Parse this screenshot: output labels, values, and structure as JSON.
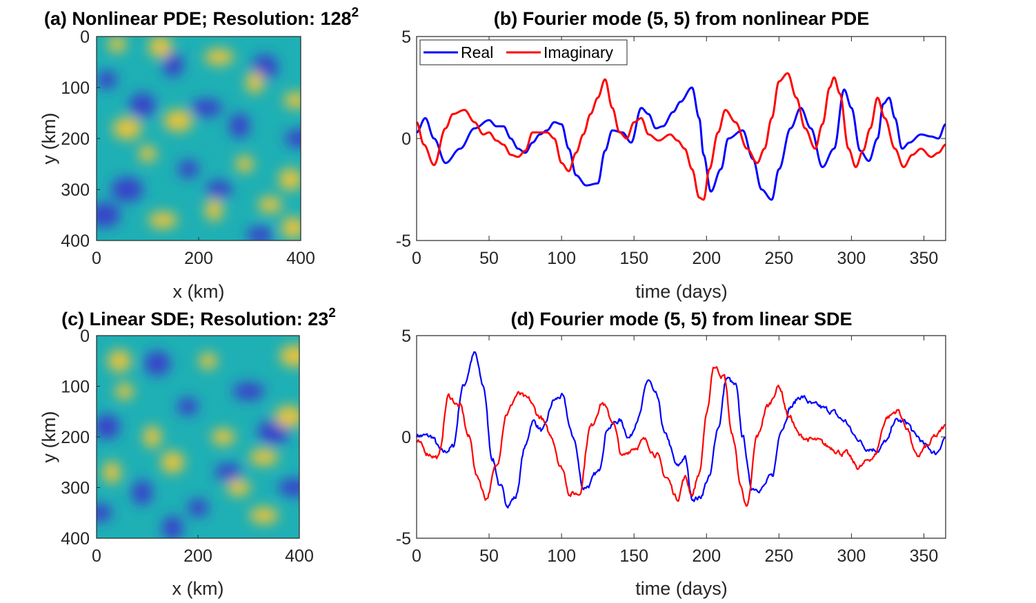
{
  "colors": {
    "real": "#0000ff",
    "imaginary": "#ff0000",
    "axis": "#262626",
    "field_low": "#3d2fcc",
    "field_mid": "#1eb0b5",
    "field_high": "#f5c431"
  },
  "chart_data": [
    {
      "id": "a",
      "type": "heatmap",
      "title_main": "(a) Nonlinear PDE; Resolution: 128",
      "title_sup": "2",
      "xlabel": "x (km)",
      "ylabel": "y (km)",
      "xlim": [
        0,
        400
      ],
      "ylim": [
        0,
        400
      ],
      "y_direction": "reversed",
      "xticks": [
        "0",
        "200",
        "400"
      ],
      "yticks": [
        "0",
        "100",
        "200",
        "300",
        "400"
      ],
      "colormap": "parula",
      "hot_spots": [
        [
          40,
          15
        ],
        [
          125,
          20
        ],
        [
          240,
          40
        ],
        [
          310,
          90
        ],
        [
          390,
          125
        ],
        [
          160,
          165
        ],
        [
          100,
          230
        ],
        [
          380,
          280
        ],
        [
          130,
          360
        ],
        [
          230,
          340
        ],
        [
          340,
          330
        ],
        [
          60,
          180
        ],
        [
          290,
          250
        ],
        [
          385,
          375
        ]
      ],
      "cold_spots": [
        [
          20,
          85
        ],
        [
          90,
          135
        ],
        [
          215,
          140
        ],
        [
          280,
          175
        ],
        [
          240,
          300
        ],
        [
          60,
          300
        ],
        [
          180,
          260
        ],
        [
          330,
          60
        ],
        [
          400,
          200
        ],
        [
          150,
          55
        ],
        [
          320,
          390
        ],
        [
          15,
          350
        ]
      ]
    },
    {
      "id": "b",
      "type": "line",
      "title": "(b) Fourier mode (5, 5) from nonlinear PDE",
      "xlabel": "time (days)",
      "ylabel": "",
      "xlim": [
        0,
        365
      ],
      "ylim": [
        -5,
        5
      ],
      "xticks": [
        "0",
        "50",
        "100",
        "150",
        "200",
        "250",
        "300",
        "350"
      ],
      "yticks": [
        "5",
        "0",
        "-5"
      ],
      "legend": {
        "position": "top-left",
        "entries": [
          "Real",
          "Imaginary"
        ]
      },
      "series": [
        {
          "name": "Real",
          "color": "#0000ff",
          "x": [
            0,
            6,
            12,
            20,
            30,
            40,
            50,
            55,
            60,
            65,
            70,
            75,
            80,
            85,
            90,
            95,
            100,
            105,
            110,
            117,
            125,
            130,
            135,
            142,
            148,
            155,
            160,
            165,
            170,
            177,
            182,
            190,
            195,
            198,
            203,
            210,
            215,
            225,
            232,
            238,
            245,
            250,
            258,
            265,
            272,
            280,
            288,
            295,
            300,
            306,
            312,
            318,
            322,
            326,
            330,
            335,
            340,
            348,
            355,
            360,
            365
          ],
          "y": [
            0.3,
            1.0,
            0.0,
            -1.2,
            -0.5,
            0.5,
            0.9,
            0.6,
            0.6,
            0.0,
            -0.5,
            -0.7,
            -0.2,
            0.2,
            0.4,
            0.8,
            0.7,
            -0.5,
            -1.8,
            -2.3,
            -2.2,
            -0.6,
            0.4,
            0.3,
            -0.2,
            1.5,
            1.2,
            0.5,
            0.6,
            1.3,
            1.8,
            2.5,
            1.0,
            -0.8,
            -2.6,
            -1.5,
            0.0,
            0.4,
            -1.0,
            -2.5,
            -3.0,
            -1.5,
            0.5,
            1.5,
            0.5,
            -1.4,
            -0.5,
            2.4,
            1.5,
            -0.6,
            -1.1,
            0.0,
            1.7,
            2.0,
            1.0,
            -0.5,
            -0.2,
            0.2,
            0.1,
            0.0,
            0.7
          ]
        },
        {
          "name": "Imaginary",
          "color": "#ff0000",
          "x": [
            0,
            5,
            12,
            20,
            25,
            33,
            40,
            46,
            50,
            55,
            60,
            65,
            70,
            75,
            80,
            85,
            90,
            95,
            100,
            105,
            110,
            115,
            120,
            125,
            130,
            135,
            140,
            145,
            150,
            155,
            160,
            167,
            175,
            180,
            185,
            190,
            195,
            198,
            202,
            208,
            213,
            220,
            228,
            235,
            240,
            245,
            250,
            256,
            262,
            268,
            275,
            280,
            285,
            288,
            292,
            298,
            303,
            308,
            313,
            318,
            323,
            330,
            336,
            342,
            348,
            355,
            360,
            365
          ],
          "y": [
            0.8,
            -0.3,
            -1.3,
            0.5,
            1.2,
            1.4,
            0.8,
            0.2,
            0.3,
            -0.1,
            -0.3,
            -0.8,
            -0.9,
            -0.6,
            0.3,
            0.3,
            0.3,
            0.0,
            -1.2,
            -1.6,
            -0.7,
            0.2,
            1.2,
            2.0,
            2.9,
            1.5,
            0.3,
            0.0,
            0.8,
            1.0,
            0.2,
            -0.1,
            0.2,
            -0.1,
            -0.5,
            -1.5,
            -2.9,
            -3.0,
            -1.5,
            0.3,
            1.4,
            0.8,
            -0.5,
            -1.2,
            -0.5,
            1.0,
            2.8,
            3.2,
            2.0,
            0.5,
            -0.5,
            0.7,
            2.5,
            3.0,
            2.2,
            -0.5,
            -1.4,
            -0.6,
            0.5,
            2.0,
            1.0,
            -0.5,
            -1.4,
            -0.8,
            -0.5,
            -0.9,
            -0.7,
            -0.3
          ]
        }
      ]
    },
    {
      "id": "c",
      "type": "heatmap",
      "title_main": "(c) Linear SDE; Resolution: 23",
      "title_sup": "2",
      "xlabel": "x (km)",
      "ylabel": "y (km)",
      "xlim": [
        0,
        400
      ],
      "ylim": [
        0,
        400
      ],
      "y_direction": "reversed",
      "xticks": [
        "0",
        "200",
        "400"
      ],
      "yticks": [
        "0",
        "100",
        "200",
        "300",
        "400"
      ],
      "colormap": "parula",
      "hot_spots": [
        [
          55,
          110
        ],
        [
          45,
          50
        ],
        [
          330,
          355
        ],
        [
          30,
          270
        ],
        [
          250,
          200
        ],
        [
          390,
          40
        ],
        [
          220,
          50
        ],
        [
          150,
          250
        ],
        [
          330,
          240
        ],
        [
          110,
          200
        ],
        [
          280,
          300
        ],
        [
          380,
          160
        ]
      ],
      "cold_spots": [
        [
          200,
          340
        ],
        [
          120,
          55
        ],
        [
          300,
          110
        ],
        [
          90,
          310
        ],
        [
          260,
          270
        ],
        [
          350,
          190
        ],
        [
          180,
          140
        ],
        [
          20,
          180
        ],
        [
          390,
          300
        ],
        [
          150,
          380
        ],
        [
          5,
          350
        ]
      ]
    },
    {
      "id": "d",
      "type": "line",
      "title": "(d) Fourier mode (5, 5) from linear SDE",
      "xlabel": "time (days)",
      "ylabel": "",
      "xlim": [
        0,
        365
      ],
      "ylim": [
        -5,
        5
      ],
      "xticks": [
        "0",
        "50",
        "100",
        "150",
        "200",
        "250",
        "300",
        "350"
      ],
      "yticks": [
        "5",
        "0",
        "-5"
      ],
      "noise": 0.22,
      "series": [
        {
          "name": "Real",
          "color": "#0000ff",
          "x": [
            0,
            10,
            18,
            25,
            32,
            40,
            46,
            52,
            58,
            62,
            68,
            75,
            80,
            87,
            95,
            100,
            108,
            115,
            118,
            125,
            132,
            140,
            147,
            153,
            160,
            165,
            172,
            180,
            185,
            190,
            195,
            202,
            208,
            214,
            220,
            225,
            231,
            238,
            245,
            252,
            258,
            265,
            275,
            285,
            295,
            303,
            310,
            318,
            325,
            330,
            338,
            345,
            352,
            358,
            365
          ],
          "y": [
            0.1,
            0.0,
            -0.8,
            -0.5,
            2.5,
            4.1,
            2.5,
            -1.0,
            -2.5,
            -3.3,
            -3.0,
            -0.5,
            0.8,
            0.3,
            1.8,
            2.0,
            0.0,
            -2.5,
            -2.4,
            -1.8,
            0.5,
            0.8,
            0.0,
            1.0,
            2.8,
            2.0,
            0.0,
            -1.5,
            -1.0,
            -3.0,
            -3.0,
            -2.0,
            0.5,
            2.9,
            2.5,
            0.0,
            -2.5,
            -2.5,
            -2.0,
            0.5,
            1.5,
            2.0,
            1.5,
            1.3,
            0.8,
            0.0,
            -0.5,
            -0.6,
            -0.2,
            0.8,
            0.7,
            0.0,
            -0.5,
            -0.8,
            0.0
          ]
        },
        {
          "name": "Imaginary",
          "color": "#ff0000",
          "x": [
            0,
            8,
            15,
            22,
            30,
            36,
            42,
            48,
            55,
            62,
            70,
            77,
            85,
            93,
            100,
            106,
            112,
            120,
            128,
            135,
            142,
            150,
            157,
            165,
            172,
            180,
            185,
            190,
            195,
            200,
            205,
            212,
            218,
            224,
            228,
            235,
            242,
            250,
            257,
            265,
            275,
            285,
            295,
            305,
            315,
            325,
            332,
            338,
            345,
            352,
            358,
            365
          ],
          "y": [
            -0.3,
            -0.8,
            -1.0,
            2.0,
            1.5,
            0.0,
            -2.0,
            -3.0,
            -1.5,
            1.2,
            2.1,
            1.8,
            1.0,
            0.0,
            -1.5,
            -2.8,
            -2.8,
            0.5,
            1.7,
            0.8,
            -1.0,
            -0.5,
            -0.2,
            -0.8,
            -2.0,
            -3.0,
            -2.0,
            -2.8,
            -1.8,
            1.0,
            3.5,
            3.0,
            0.0,
            -2.5,
            -3.5,
            0.0,
            1.5,
            2.5,
            1.0,
            0.0,
            -0.2,
            -0.5,
            -0.8,
            -1.5,
            -1.0,
            1.0,
            1.3,
            0.5,
            -1.0,
            -0.5,
            0.0,
            0.5
          ]
        }
      ]
    }
  ]
}
